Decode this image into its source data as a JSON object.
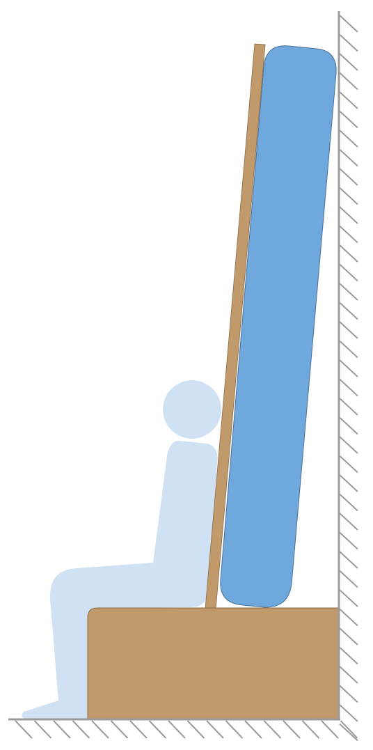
{
  "colors": {
    "background": "#ffffff",
    "wall": "#9b9b9b",
    "hatch": "#9b9b9b",
    "person": "#cfe1f3",
    "cushion": "#6fa8dc",
    "cushion_outline": "#4a6f95",
    "board": "#c19a6b",
    "board_outline": "#8a6a45",
    "box": "#c19a6b",
    "box_outline": "#8a6a45"
  },
  "icons": {
    "ground": "hatched-ground-icon",
    "wall": "hatched-wall-icon",
    "person": "seated-person-icon",
    "cushion": "tall-cushion-icon",
    "board": "leaning-board-icon",
    "box": "seat-box-icon"
  }
}
